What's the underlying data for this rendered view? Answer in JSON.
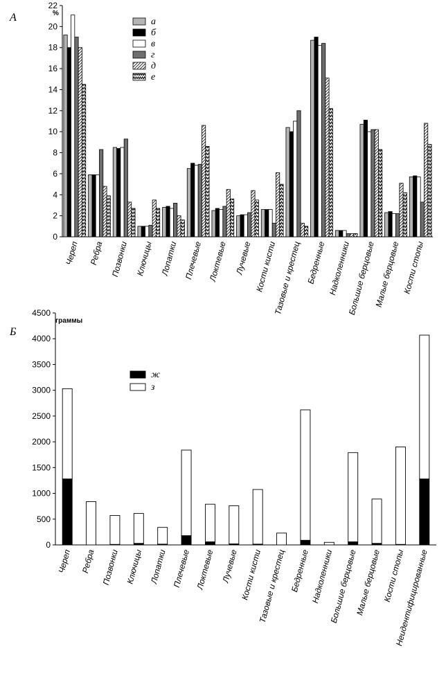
{
  "chart_data": [
    {
      "type": "bar",
      "panel_label": "А",
      "unit_label": "%",
      "ylim": [
        0,
        22
      ],
      "yticks": [
        0,
        2,
        4,
        6,
        8,
        10,
        12,
        14,
        16,
        18,
        20,
        22
      ],
      "legend_position": "top-center",
      "categories": [
        "Череп",
        "Ребра",
        "Позвонки",
        "Ключицы",
        "Лопатки",
        "Плечевые",
        "Локтевые",
        "Лучевые",
        "Кости кисти",
        "Тазовые и крестец",
        "Бедренные",
        "Надколенники",
        "Большие берцовые",
        "Малые берцовые",
        "Кости стопы"
      ],
      "series": [
        {
          "name": "а",
          "color": "#b4b4b4",
          "pattern": "light-gray",
          "values": [
            19.2,
            5.9,
            8.5,
            1.0,
            2.8,
            6.5,
            2.5,
            2.0,
            2.6,
            10.4,
            18.7,
            0.6,
            10.7,
            2.3,
            5.7
          ]
        },
        {
          "name": "б",
          "color": "#000000",
          "pattern": "black",
          "values": [
            18.0,
            5.9,
            8.4,
            1.0,
            2.9,
            7.0,
            2.7,
            2.1,
            2.6,
            10.0,
            19.0,
            0.6,
            11.1,
            2.4,
            5.8
          ]
        },
        {
          "name": "в",
          "color": "#ffffff",
          "pattern": "white",
          "values": [
            21.1,
            5.9,
            8.5,
            1.0,
            2.7,
            6.8,
            2.6,
            2.1,
            2.6,
            11.0,
            18.2,
            0.6,
            10.0,
            2.2,
            5.7
          ]
        },
        {
          "name": "г",
          "color": "#6e6e6e",
          "pattern": "dark-gray",
          "values": [
            19.0,
            8.3,
            9.3,
            1.1,
            3.2,
            6.9,
            2.9,
            2.3,
            1.3,
            12.0,
            18.4,
            0.3,
            10.2,
            2.2,
            3.3
          ]
        },
        {
          "name": "д",
          "color": "#bbbbbb",
          "pattern": "dense-diagonal",
          "values": [
            18.0,
            4.8,
            3.3,
            3.5,
            2.0,
            10.6,
            4.5,
            4.4,
            6.1,
            1.3,
            15.1,
            0.3,
            10.2,
            5.1,
            10.8
          ]
        },
        {
          "name": "е",
          "color": "#dddddd",
          "pattern": "zigzag",
          "values": [
            14.5,
            3.9,
            2.7,
            2.7,
            1.6,
            8.6,
            3.6,
            3.5,
            5.0,
            1.0,
            12.2,
            0.3,
            8.3,
            4.2,
            8.8
          ]
        }
      ]
    },
    {
      "type": "bar",
      "stacked": true,
      "panel_label": "Б",
      "unit_label": "граммы",
      "ylim": [
        0,
        4500
      ],
      "yticks": [
        0,
        500,
        1000,
        1500,
        2000,
        2500,
        3000,
        3500,
        4000,
        4500
      ],
      "legend_position": "top-center",
      "categories": [
        "Череп",
        "Ребра",
        "Позвонки",
        "Ключицы",
        "Лопатки",
        "Плечевые",
        "Локтевые",
        "Лучевые",
        "Кости кисти",
        "Тазовые и крестец",
        "Бедренные",
        "Надколенники",
        "Большие берцовые",
        "Малые берцовые",
        "Кости стопы",
        "Неидентифицированные"
      ],
      "series": [
        {
          "name": "ж",
          "color": "#000000",
          "values": [
            1280,
            0,
            10,
            30,
            15,
            180,
            60,
            20,
            15,
            0,
            90,
            0,
            60,
            30,
            10,
            1280
          ]
        },
        {
          "name": "з",
          "color": "#ffffff",
          "values": [
            1750,
            840,
            560,
            580,
            325,
            1660,
            730,
            740,
            1060,
            230,
            2530,
            50,
            1730,
            860,
            1890,
            2790
          ]
        }
      ]
    }
  ]
}
